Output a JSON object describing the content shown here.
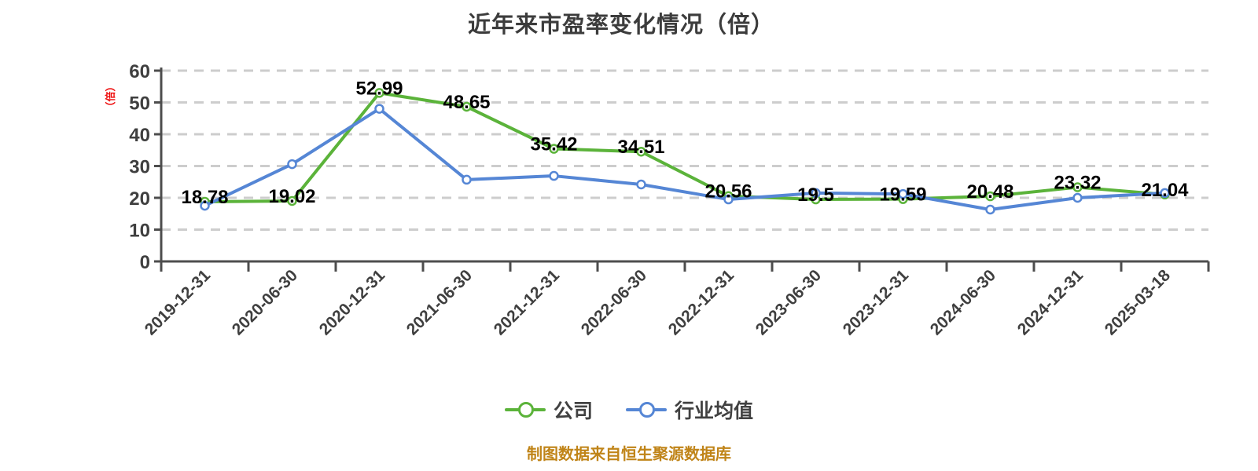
{
  "chart": {
    "title": "近年来市盈率变化情况（倍）",
    "y_axis_unit": "（倍）",
    "footer": "制图数据来自恒生聚源数据库",
    "colors": {
      "company_line": "#5bb33a",
      "industry_line": "#5586d5",
      "grid": "#cdcdcd",
      "axis": "#4d4d4d",
      "tick_label": "#3f3f3f",
      "data_label": "#000000",
      "title": "#3c3c3c",
      "footer": "#c08418",
      "y_unit": "#ee0d0d",
      "marker_fill": "#ffffff"
    }
  },
  "chart_data": {
    "type": "line",
    "title": "近年来市盈率变化情况（倍）",
    "categories": [
      "2019-12-31",
      "2020-06-30",
      "2020-12-31",
      "2021-06-30",
      "2021-12-31",
      "2022-06-30",
      "2022-12-31",
      "2023-06-30",
      "2023-12-31",
      "2024-06-30",
      "2024-12-31",
      "2025-03-18"
    ],
    "series": [
      {
        "key": "company",
        "name": "公司",
        "color": "#5bb33a",
        "values": [
          18.78,
          19.02,
          52.99,
          48.65,
          35.42,
          34.51,
          20.56,
          19.5,
          19.59,
          20.48,
          23.32,
          21.04
        ],
        "point_labels": [
          "18.78",
          "19.02",
          "52.99",
          "48.65",
          "35.42",
          "34.51",
          "20.56",
          "19.5",
          "19.59",
          "20.48",
          "23.32",
          "21.04"
        ]
      },
      {
        "key": "industry",
        "name": "行业均值",
        "color": "#5586d5",
        "values": [
          17.5,
          30.6,
          48.0,
          25.7,
          26.9,
          24.2,
          19.5,
          21.5,
          21.2,
          16.3,
          20.0,
          21.5
        ],
        "point_labels": []
      }
    ],
    "ylim": [
      0,
      60
    ],
    "yticks": [
      0,
      10,
      20,
      30,
      40,
      50,
      60
    ],
    "xlabel": "",
    "ylabel": "（倍）",
    "grid": "horizontal-dashed",
    "legend_position": "bottom",
    "legend": [
      "公司",
      "行业均值"
    ]
  }
}
